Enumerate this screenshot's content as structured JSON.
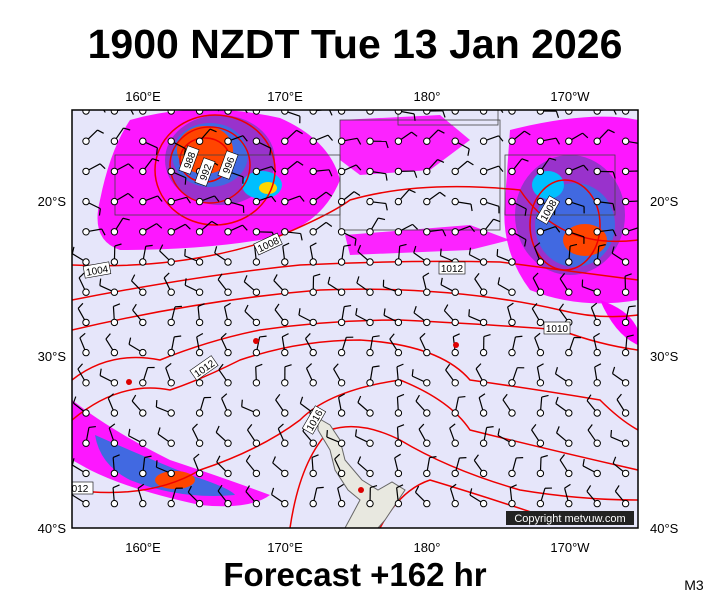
{
  "header": {
    "title": "1900 NZDT Tue 13 Jan 2026"
  },
  "map": {
    "lon_labels_top": [
      "160°E",
      "170°E",
      "180°",
      "170°W"
    ],
    "lon_labels_bottom": [
      "160°E",
      "170°E",
      "180°",
      "170°W"
    ],
    "lat_labels_left": [
      "20°S",
      "30°S",
      "40°S"
    ],
    "lat_labels_right": [
      "20°S",
      "30°S",
      "40°S"
    ],
    "isobar_labels": [
      "988",
      "992",
      "996",
      "1004",
      "1008",
      "1012",
      "1012",
      "1016",
      "1008",
      "1010",
      "012"
    ],
    "copyright": "Copyright metvuw.com"
  },
  "footer": {
    "forecast": "Forecast +162 hr",
    "model": "M3"
  }
}
